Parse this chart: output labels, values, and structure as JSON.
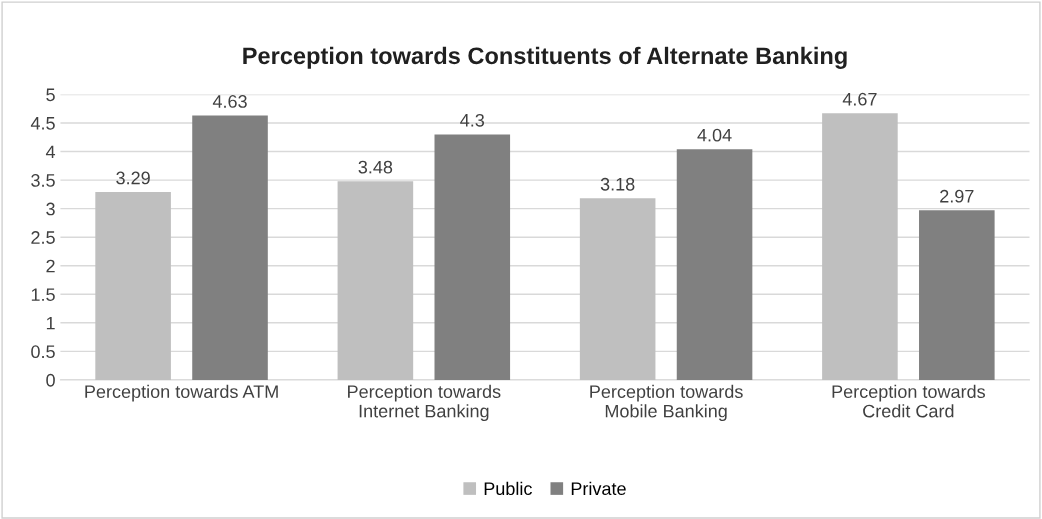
{
  "chart_data": {
    "type": "bar",
    "title": "Perception towards Constituents of Alternate Banking",
    "categories": [
      "Perception towards ATM",
      "Perception towards\nInternet Banking",
      "Perception towards\nMobile Banking",
      "Perception towards\nCredit Card"
    ],
    "series": [
      {
        "name": "Public",
        "color": "#bfbfbf",
        "values": [
          3.29,
          3.48,
          3.18,
          4.67
        ]
      },
      {
        "name": "Private",
        "color": "#808080",
        "values": [
          4.63,
          4.3,
          4.04,
          2.97
        ]
      }
    ],
    "ylim": [
      0,
      5
    ],
    "yticks": [
      0,
      0.5,
      1,
      1.5,
      2,
      2.5,
      3,
      3.5,
      4,
      4.5,
      5
    ],
    "grid": "y",
    "legend": "bottom",
    "data_labels": true
  }
}
